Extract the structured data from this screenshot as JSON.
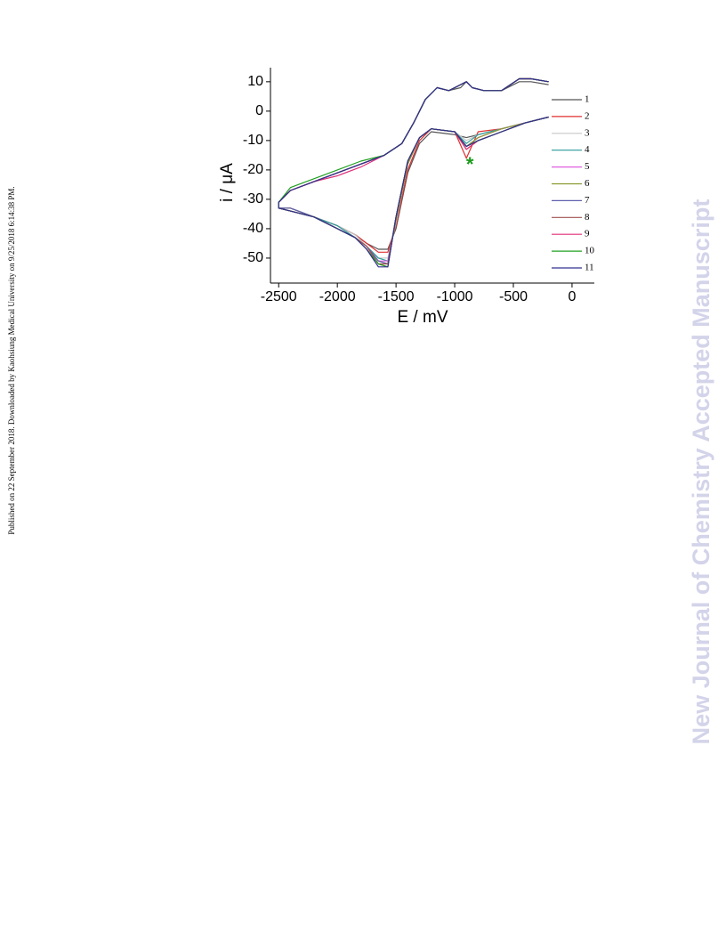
{
  "side_note": "Published on 22 September 2018. Downloaded by Kaohsiung Medical University on 9/25/2018 6:14:38 PM.",
  "watermark": "New Journal of Chemistry Accepted Manuscript",
  "chart_data": {
    "type": "line",
    "xlabel": "E / mV",
    "ylabel": "i / μA",
    "annotation": "*",
    "annotation_x": -870,
    "annotation_y": -17,
    "annotation_color": "#1a9a1a",
    "xlim": [
      -2570,
      190
    ],
    "ylim": [
      -58.5,
      14.8
    ],
    "xticks": [
      -2500,
      -2000,
      -1500,
      -1000,
      -500,
      0
    ],
    "yticks": [
      -50,
      -40,
      -30,
      -20,
      -10,
      0,
      10
    ],
    "legend": "right",
    "x": [
      -200,
      -400,
      -600,
      -800,
      -900,
      -1000,
      -1200,
      -1300,
      -1400,
      -1500,
      -1570,
      -1650,
      -1750,
      -1850,
      -2000,
      -2200,
      -2400,
      -2500,
      -2500,
      -2400,
      -2200,
      -2000,
      -1800,
      -1600,
      -1450,
      -1350,
      -1250,
      -1150,
      -1050,
      -950,
      -900,
      -850,
      -750,
      -600,
      -450,
      -350,
      -200
    ],
    "series": [
      {
        "name": "1",
        "color": "#555555",
        "values": [
          -2,
          -4,
          -6,
          -8,
          -9,
          -8,
          -7,
          -11,
          -21,
          -40,
          -47,
          -47,
          -45,
          -42,
          -39,
          -36,
          -34,
          -33,
          -31,
          -27,
          -24,
          -21,
          -18,
          -15,
          -11,
          -4,
          4,
          8,
          7,
          8,
          10,
          8,
          7,
          7,
          10,
          10,
          9
        ]
      },
      {
        "name": "2",
        "color": "#e03030",
        "values": [
          -2,
          -4,
          -6,
          -7,
          -16,
          -7,
          -6,
          -10,
          -20,
          -39,
          -48,
          -48,
          -45,
          -42,
          -39,
          -36,
          -34,
          -33,
          -31,
          -27,
          -24,
          -21,
          -18,
          -15,
          -11,
          -4,
          4,
          8,
          7,
          9,
          10,
          8,
          7,
          7,
          11,
          11,
          10
        ]
      },
      {
        "name": "3",
        "color": "#c8c8c8",
        "values": [
          -2,
          -4,
          -6,
          -8,
          -10,
          -7,
          -6,
          -9,
          -18,
          -38,
          -50,
          -50,
          -46,
          -42,
          -39,
          -36,
          -33,
          -33,
          -31,
          -27,
          -24,
          -21,
          -18,
          -15,
          -11,
          -4,
          4,
          8,
          7,
          9,
          10,
          8,
          7,
          7,
          11,
          11,
          10
        ]
      },
      {
        "name": "4",
        "color": "#2a9a9a",
        "values": [
          -2,
          -4,
          -6,
          -8,
          -11,
          -7,
          -6,
          -9,
          -18,
          -37,
          -51,
          -50,
          -46,
          -43,
          -39,
          -36,
          -33,
          -33,
          -31,
          -27,
          -24,
          -21,
          -18,
          -15,
          -11,
          -4,
          4,
          8,
          7,
          9,
          10,
          8,
          7,
          7,
          11,
          11,
          10
        ]
      },
      {
        "name": "5",
        "color": "#e060e0",
        "values": [
          -2,
          -4,
          -6,
          -9,
          -12,
          -7,
          -6,
          -9,
          -18,
          -37,
          -51,
          -51,
          -46,
          -43,
          -40,
          -36,
          -33,
          -33,
          -31,
          -27,
          -24,
          -21,
          -18,
          -15,
          -11,
          -4,
          4,
          8,
          7,
          9,
          10,
          8,
          7,
          7,
          11,
          11,
          10
        ]
      },
      {
        "name": "6",
        "color": "#8a9a30",
        "values": [
          -2,
          -4,
          -6,
          -9,
          -12,
          -7,
          -6,
          -9,
          -18,
          -37,
          -52,
          -51,
          -46,
          -43,
          -40,
          -36,
          -33,
          -33,
          -31,
          -27,
          -24,
          -21,
          -18,
          -15,
          -11,
          -4,
          4,
          8,
          7,
          9,
          10,
          8,
          7,
          7,
          11,
          11,
          10
        ]
      },
      {
        "name": "7",
        "color": "#6060b0",
        "values": [
          -2,
          -4,
          -7,
          -10,
          -12,
          -7,
          -6,
          -9,
          -17,
          -36,
          -52,
          -51,
          -46,
          -43,
          -40,
          -36,
          -33,
          -33,
          -31,
          -27,
          -24,
          -21,
          -18,
          -15,
          -11,
          -4,
          4,
          8,
          7,
          9,
          10,
          8,
          7,
          7,
          11,
          11,
          10
        ]
      },
      {
        "name": "8",
        "color": "#a05050",
        "values": [
          -2,
          -4,
          -7,
          -10,
          -13,
          -7,
          -6,
          -9,
          -17,
          -36,
          -52,
          -52,
          -46,
          -43,
          -40,
          -36,
          -34,
          -33,
          -31,
          -27,
          -24,
          -21,
          -18,
          -15,
          -11,
          -4,
          4,
          8,
          7,
          9,
          10,
          8,
          7,
          7,
          11,
          11,
          10
        ]
      },
      {
        "name": "9",
        "color": "#e0307a",
        "values": [
          -2,
          -4,
          -7,
          -10,
          -13,
          -7,
          -6,
          -9,
          -17,
          -36,
          -53,
          -52,
          -47,
          -43,
          -40,
          -36,
          -34,
          -33,
          -31,
          -27,
          -24,
          -22,
          -19,
          -15,
          -11,
          -4,
          4,
          8,
          7,
          9,
          10,
          8,
          7,
          7,
          11,
          11,
          10
        ]
      },
      {
        "name": "10",
        "color": "#20a020",
        "values": [
          -2,
          -4,
          -7,
          -10,
          -12,
          -7,
          -6,
          -9,
          -17,
          -36,
          -53,
          -52,
          -47,
          -43,
          -40,
          -36,
          -34,
          -33,
          -31,
          -26,
          -23,
          -20,
          -17,
          -15,
          -11,
          -4,
          4,
          8,
          7,
          9,
          10,
          8,
          7,
          7,
          11,
          11,
          10
        ]
      },
      {
        "name": "11",
        "color": "#303090",
        "values": [
          -2,
          -4,
          -7,
          -10,
          -12,
          -7,
          -6,
          -9,
          -17,
          -36,
          -53,
          -53,
          -47,
          -43,
          -40,
          -36,
          -34,
          -33,
          -31,
          -27,
          -24,
          -21,
          -18,
          -15,
          -11,
          -4,
          4,
          8,
          7,
          9,
          10,
          8,
          7,
          7,
          11,
          11,
          10
        ]
      }
    ]
  }
}
